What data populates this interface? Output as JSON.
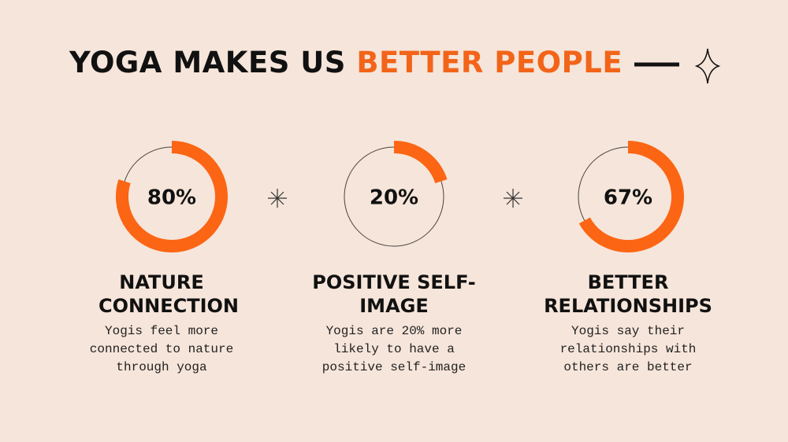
{
  "title": {
    "dark": "YOGA MAKES US",
    "accent": "BETTER PEOPLE"
  },
  "items": [
    {
      "value": 80,
      "value_label": "80%",
      "heading": "NATURE CONNECTION",
      "text": "Yogis feel more connected to nature through yoga"
    },
    {
      "value": 20,
      "value_label": "20%",
      "heading": "POSITIVE SELF-IMAGE",
      "text": "Yogis are 20% more likely to have a positive self-image"
    },
    {
      "value": 67,
      "value_label": "67%",
      "heading": "BETTER RELATIONSHIPS",
      "text": "Yogis say their relationships with others are better"
    }
  ]
}
